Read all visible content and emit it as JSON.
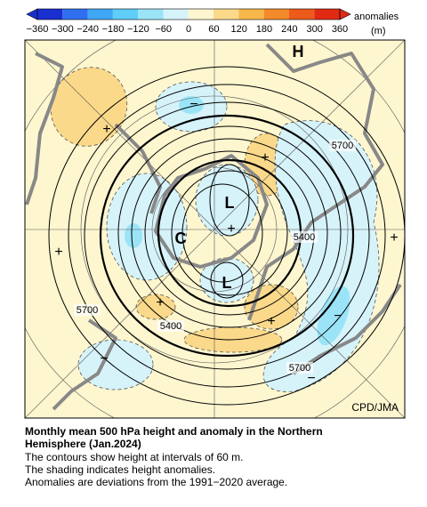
{
  "colorbar": {
    "ticks": [
      "−360",
      "−300",
      "−240",
      "−180",
      "−120",
      "−60",
      "0",
      "60",
      "120",
      "180",
      "240",
      "300",
      "360"
    ],
    "label": "anomalies",
    "unit": "(m)"
  },
  "map": {
    "contour_labels": [
      "5700",
      "5400",
      "5700",
      "5400",
      "5700"
    ],
    "centers": [
      "H",
      "L",
      "C",
      "L"
    ],
    "anomaly_signs": [
      "+",
      "−",
      "+",
      "+",
      "+",
      "+",
      "+",
      "+",
      "−",
      "−",
      "−"
    ],
    "credit": "CPD/JMA"
  },
  "caption": {
    "title": "Monthly mean 500 hPa height and anomaly in the Northern Hemisphere (Jan.2024)",
    "lines": [
      "The contours show height at intervals of 60 m.",
      "The shading indicates height anomalies.",
      "Anomalies are deviations from the 1991−2020 average."
    ]
  }
}
